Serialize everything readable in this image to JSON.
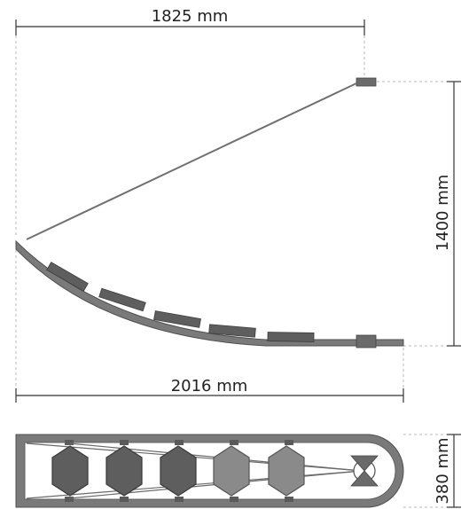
{
  "dimensions": {
    "top_width": "1825 mm",
    "bottom_width": "2016 mm",
    "height": "1400 mm",
    "plan_depth": "380 mm"
  },
  "colors": {
    "dimension_line": "#333333",
    "guide_line": "#b0b0b0",
    "frame": "#7a7a7a",
    "frame_dark": "#505050",
    "panel": "#5e5e5e",
    "panel_light": "#8a8a8a",
    "background": "#ffffff"
  },
  "views": {
    "elevation": {
      "panel_count": 5
    },
    "plan": {
      "panel_count": 5,
      "panel_shape": "hexagon-icon"
    }
  }
}
